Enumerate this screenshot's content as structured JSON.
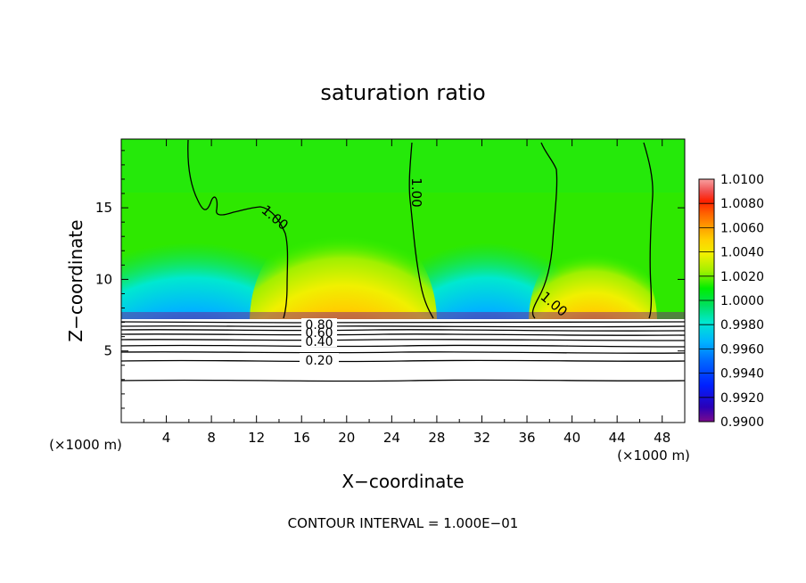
{
  "chart_data": {
    "type": "heatmap",
    "title": "saturation ratio",
    "xlabel": "X−coordinate",
    "ylabel": "Z−coordinate",
    "x_unit": "(×1000 m)",
    "z_unit": "(×1000 m)",
    "xlim": [
      0,
      50
    ],
    "ylim": [
      0,
      19.8
    ],
    "x_ticks": [
      4,
      8,
      12,
      16,
      20,
      24,
      28,
      32,
      36,
      40,
      44,
      48
    ],
    "y_ticks": [
      5,
      10,
      15
    ],
    "footer": "CONTOUR INTERVAL = 1.000E−01",
    "colorbar": {
      "levels": [
        "1.0100",
        "1.0080",
        "1.0060",
        "1.0040",
        "1.0020",
        "1.0000",
        "0.9980",
        "0.9960",
        "0.9940",
        "0.9920",
        "0.9900"
      ],
      "min": 0.99,
      "max": 1.01,
      "colors": [
        "#7a0a8c",
        "#2a00b8",
        "#0020ff",
        "#0068ff",
        "#00b4ff",
        "#00e8d0",
        "#00e060",
        "#00ee00",
        "#30f000",
        "#a0f000",
        "#f0f000",
        "#ffd000",
        "#ffa000",
        "#ff6000",
        "#ff2000",
        "#e81010",
        "#f05050",
        "#f8a0a0"
      ]
    },
    "contour_labels": {
      "c100": "1.00",
      "c080": "0.80",
      "c060": "0.60",
      "c040": "0.40",
      "c020": "0.20"
    }
  }
}
